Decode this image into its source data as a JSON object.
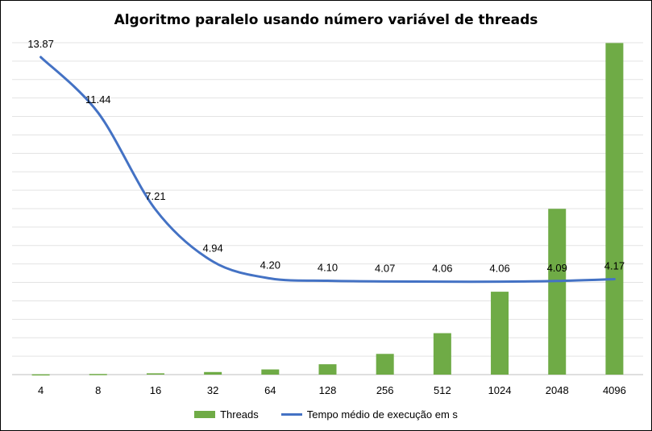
{
  "chart_data": {
    "type": "bar+line",
    "title": "Algoritmo paralelo usando número variável de threads",
    "categories": [
      "4",
      "8",
      "16",
      "32",
      "64",
      "128",
      "256",
      "512",
      "1024",
      "2048",
      "4096"
    ],
    "series": [
      {
        "name": "Threads",
        "type": "bar",
        "color": "#6FAB46",
        "axis": "secondary",
        "values": [
          4,
          8,
          16,
          32,
          64,
          128,
          256,
          512,
          1024,
          2048,
          4096
        ]
      },
      {
        "name": "Tempo médio de execução em s",
        "type": "line",
        "color": "#4472C4",
        "axis": "primary",
        "values": [
          13.87,
          11.44,
          7.21,
          4.94,
          4.2,
          4.1,
          4.07,
          4.06,
          4.06,
          4.09,
          4.17
        ],
        "labels": [
          "13.87",
          "11.44",
          "7.21",
          "4.94",
          "4.20",
          "4.10",
          "4.07",
          "4.06",
          "4.06",
          "4.09",
          "4.17"
        ]
      }
    ],
    "ylim": [
      0,
      14.5
    ],
    "y2lim": [
      0,
      4100
    ],
    "grid": true,
    "legend_position": "bottom"
  }
}
